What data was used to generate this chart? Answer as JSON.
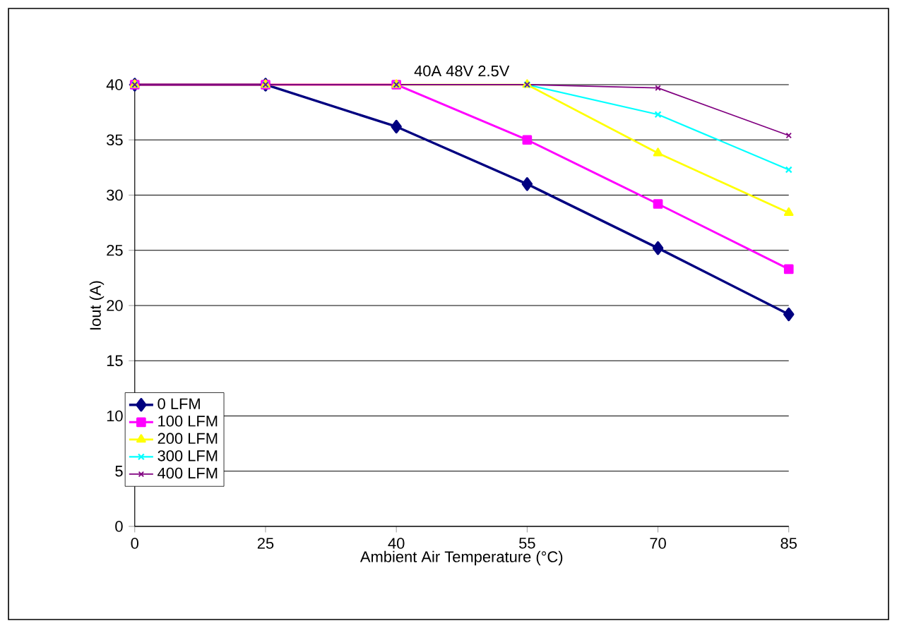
{
  "chart_data": {
    "type": "line",
    "title": "40A 48V 2.5V",
    "xlabel": "Ambient Air Temperature (°C)",
    "ylabel": "Iout (A)",
    "categories": [
      "0",
      "25",
      "40",
      "55",
      "70",
      "85"
    ],
    "ylim": [
      0,
      40
    ],
    "yticks": [
      0,
      5,
      10,
      15,
      20,
      25,
      30,
      35,
      40
    ],
    "grid": "y",
    "legend": "left",
    "series": [
      {
        "name": "0 LFM",
        "color": "#000080",
        "marker": "diamond",
        "values": [
          40,
          40,
          36.2,
          31,
          25.2,
          19.2
        ]
      },
      {
        "name": "100 LFM",
        "color": "#ff00ff",
        "marker": "square",
        "values": [
          40,
          40,
          40,
          35,
          29.2,
          23.3
        ]
      },
      {
        "name": "200 LFM",
        "color": "#ffff00",
        "marker": "triangle",
        "values": [
          40,
          40,
          40,
          40,
          33.8,
          28.4
        ]
      },
      {
        "name": "300 LFM",
        "color": "#00ffff",
        "marker": "cross",
        "values": [
          40,
          40,
          40,
          40,
          37.3,
          32.3
        ]
      },
      {
        "name": "400 LFM",
        "color": "#800080",
        "marker": "cross",
        "values": [
          40,
          40,
          40,
          40,
          39.7,
          35.4
        ]
      }
    ]
  }
}
